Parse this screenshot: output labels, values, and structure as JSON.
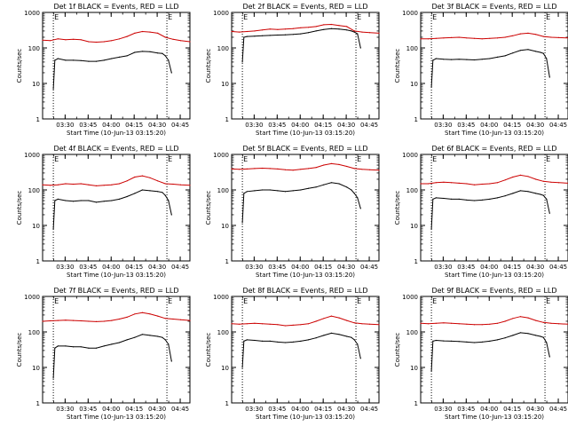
{
  "figure": {
    "xlabel": "Start Time (10-Jun-13 03:15:20)",
    "ylabel": "Counts/sec",
    "xtick_labels": [
      "03:30",
      "03:45",
      "04:00",
      "04:15",
      "04:30",
      "04:45"
    ],
    "ytick_labels": [
      "1",
      "10",
      "100",
      "1000"
    ],
    "marker_label": "E",
    "colors": {
      "events": "#000000",
      "lld": "#cc0000",
      "axis": "#000000",
      "background": "#ffffff"
    }
  },
  "chart_data": [
    {
      "type": "line",
      "title": "Det 1f BLACK = Events, RED = LLD",
      "xlabel": "Start Time (10-Jun-13 03:15:20)",
      "ylabel": "Counts/sec",
      "yscale": "log",
      "ylim": [
        1,
        1000
      ],
      "x_unit": "minutes after 03:15:20",
      "xlim": [
        0,
        96
      ],
      "xticks": [
        "03:30",
        "03:45",
        "04:00",
        "04:15",
        "04:30",
        "04:45"
      ],
      "markers_E": [
        7,
        81
      ],
      "series": [
        {
          "name": "Events",
          "color": "#000000",
          "x": [
            7,
            8,
            10,
            15,
            20,
            25,
            30,
            35,
            40,
            45,
            50,
            55,
            60,
            65,
            70,
            75,
            78,
            80,
            82,
            84
          ],
          "y": [
            7,
            45,
            50,
            45,
            45,
            44,
            42,
            42,
            45,
            50,
            55,
            60,
            75,
            80,
            78,
            72,
            70,
            60,
            45,
            20
          ]
        },
        {
          "name": "LLD",
          "color": "#cc0000",
          "x": [
            0,
            5,
            10,
            15,
            20,
            25,
            30,
            35,
            40,
            45,
            50,
            55,
            60,
            65,
            70,
            75,
            80,
            85,
            90,
            96
          ],
          "y": [
            165,
            160,
            180,
            170,
            175,
            170,
            150,
            145,
            150,
            160,
            180,
            210,
            260,
            290,
            280,
            260,
            200,
            175,
            160,
            150
          ]
        }
      ]
    },
    {
      "type": "line",
      "title": "Det 2f BLACK = Events, RED = LLD",
      "xlabel": "Start Time (10-Jun-13 03:15:20)",
      "ylabel": "Counts/sec",
      "yscale": "log",
      "ylim": [
        1,
        1000
      ],
      "x_unit": "minutes after 03:15:20",
      "xlim": [
        0,
        96
      ],
      "xticks": [
        "03:30",
        "03:45",
        "04:00",
        "04:15",
        "04:30",
        "04:45"
      ],
      "markers_E": [
        7,
        81
      ],
      "series": [
        {
          "name": "Events",
          "color": "#000000",
          "x": [
            7,
            8,
            10,
            15,
            20,
            25,
            30,
            35,
            40,
            45,
            50,
            55,
            60,
            65,
            70,
            75,
            78,
            80,
            82,
            84
          ],
          "y": [
            40,
            200,
            210,
            215,
            220,
            225,
            230,
            235,
            240,
            250,
            270,
            300,
            330,
            350,
            340,
            320,
            300,
            280,
            250,
            100
          ]
        },
        {
          "name": "LLD",
          "color": "#cc0000",
          "x": [
            0,
            5,
            10,
            15,
            20,
            25,
            30,
            35,
            40,
            45,
            50,
            55,
            60,
            65,
            70,
            75,
            80,
            85,
            90,
            96
          ],
          "y": [
            290,
            280,
            290,
            300,
            320,
            340,
            330,
            340,
            350,
            370,
            380,
            400,
            450,
            460,
            430,
            400,
            300,
            280,
            270,
            260
          ]
        }
      ]
    },
    {
      "type": "line",
      "title": "Det 3f BLACK = Events, RED = LLD",
      "xlabel": "Start Time (10-Jun-13 03:15:20)",
      "ylabel": "Counts/sec",
      "yscale": "log",
      "ylim": [
        1,
        1000
      ],
      "x_unit": "minutes after 03:15:20",
      "xlim": [
        0,
        96
      ],
      "xticks": [
        "03:30",
        "03:45",
        "04:00",
        "04:15",
        "04:30",
        "04:45"
      ],
      "markers_E": [
        7,
        81
      ],
      "series": [
        {
          "name": "Events",
          "color": "#000000",
          "x": [
            7,
            8,
            10,
            15,
            20,
            25,
            30,
            35,
            40,
            45,
            50,
            55,
            60,
            65,
            70,
            75,
            78,
            80,
            82,
            84
          ],
          "y": [
            8,
            45,
            50,
            48,
            47,
            48,
            47,
            46,
            48,
            50,
            55,
            60,
            72,
            85,
            90,
            80,
            75,
            70,
            50,
            15
          ]
        },
        {
          "name": "LLD",
          "color": "#cc0000",
          "x": [
            0,
            5,
            10,
            15,
            20,
            25,
            30,
            35,
            40,
            45,
            50,
            55,
            60,
            65,
            70,
            75,
            80,
            85,
            90,
            96
          ],
          "y": [
            180,
            180,
            185,
            190,
            195,
            200,
            190,
            185,
            180,
            185,
            190,
            200,
            220,
            250,
            260,
            240,
            210,
            200,
            195,
            190
          ]
        }
      ]
    },
    {
      "type": "line",
      "title": "Det 4f BLACK = Events, RED = LLD",
      "xlabel": "Start Time (10-Jun-13 03:15:20)",
      "ylabel": "Counts/sec",
      "yscale": "log",
      "ylim": [
        1,
        1000
      ],
      "x_unit": "minutes after 03:15:20",
      "xlim": [
        0,
        96
      ],
      "xticks": [
        "03:30",
        "03:45",
        "04:00",
        "04:15",
        "04:30",
        "04:45"
      ],
      "markers_E": [
        7,
        81
      ],
      "series": [
        {
          "name": "Events",
          "color": "#000000",
          "x": [
            7,
            8,
            10,
            15,
            20,
            25,
            30,
            35,
            40,
            45,
            50,
            55,
            60,
            65,
            70,
            75,
            78,
            80,
            82,
            84
          ],
          "y": [
            8,
            50,
            55,
            50,
            48,
            50,
            50,
            45,
            48,
            50,
            55,
            65,
            80,
            100,
            95,
            90,
            85,
            70,
            50,
            20
          ]
        },
        {
          "name": "LLD",
          "color": "#cc0000",
          "x": [
            0,
            5,
            10,
            15,
            20,
            25,
            30,
            35,
            40,
            45,
            50,
            55,
            60,
            65,
            70,
            75,
            80,
            85,
            90,
            96
          ],
          "y": [
            140,
            135,
            140,
            150,
            145,
            150,
            140,
            130,
            135,
            140,
            150,
            180,
            230,
            250,
            220,
            180,
            150,
            145,
            140,
            135
          ]
        }
      ]
    },
    {
      "type": "line",
      "title": "Det 5f BLACK = Events, RED = LLD",
      "xlabel": "Start Time (10-Jun-13 03:15:20)",
      "ylabel": "Counts/sec",
      "yscale": "log",
      "ylim": [
        1,
        1000
      ],
      "x_unit": "minutes after 03:15:20",
      "xlim": [
        0,
        96
      ],
      "xticks": [
        "03:30",
        "03:45",
        "04:00",
        "04:15",
        "04:30",
        "04:45"
      ],
      "markers_E": [
        7,
        81
      ],
      "series": [
        {
          "name": "Events",
          "color": "#000000",
          "x": [
            7,
            8,
            10,
            15,
            20,
            25,
            30,
            35,
            40,
            45,
            50,
            55,
            60,
            65,
            70,
            75,
            78,
            80,
            82,
            84
          ],
          "y": [
            12,
            80,
            90,
            95,
            100,
            100,
            95,
            90,
            95,
            100,
            110,
            120,
            140,
            160,
            150,
            120,
            100,
            80,
            60,
            30
          ]
        },
        {
          "name": "LLD",
          "color": "#cc0000",
          "x": [
            0,
            5,
            10,
            15,
            20,
            25,
            30,
            35,
            40,
            45,
            50,
            55,
            60,
            65,
            70,
            75,
            80,
            85,
            90,
            96
          ],
          "y": [
            390,
            380,
            390,
            400,
            410,
            400,
            390,
            370,
            360,
            380,
            400,
            430,
            500,
            550,
            520,
            460,
            400,
            380,
            370,
            360
          ]
        }
      ]
    },
    {
      "type": "line",
      "title": "Det 6f BLACK = Events, RED = LLD",
      "xlabel": "Start Time (10-Jun-13 03:15:20)",
      "ylabel": "Counts/sec",
      "yscale": "log",
      "ylim": [
        1,
        1000
      ],
      "x_unit": "minutes after 03:15:20",
      "xlim": [
        0,
        96
      ],
      "xticks": [
        "03:30",
        "03:45",
        "04:00",
        "04:15",
        "04:30",
        "04:45"
      ],
      "markers_E": [
        7,
        81
      ],
      "series": [
        {
          "name": "Events",
          "color": "#000000",
          "x": [
            7,
            8,
            10,
            15,
            20,
            25,
            30,
            35,
            40,
            45,
            50,
            55,
            60,
            65,
            70,
            75,
            78,
            80,
            82,
            84
          ],
          "y": [
            8,
            55,
            60,
            58,
            55,
            55,
            52,
            50,
            52,
            55,
            60,
            68,
            80,
            95,
            90,
            80,
            75,
            70,
            55,
            22
          ]
        },
        {
          "name": "LLD",
          "color": "#cc0000",
          "x": [
            0,
            5,
            10,
            15,
            20,
            25,
            30,
            35,
            40,
            45,
            50,
            55,
            60,
            65,
            70,
            75,
            80,
            85,
            90,
            96
          ],
          "y": [
            150,
            150,
            160,
            165,
            160,
            155,
            150,
            140,
            145,
            150,
            160,
            190,
            230,
            260,
            240,
            200,
            175,
            165,
            160,
            155
          ]
        }
      ]
    },
    {
      "type": "line",
      "title": "Det 7f BLACK = Events, RED = LLD",
      "xlabel": "Start Time (10-Jun-13 03:15:20)",
      "ylabel": "Counts/sec",
      "yscale": "log",
      "ylim": [
        1,
        1000
      ],
      "x_unit": "minutes after 03:15:20",
      "xlim": [
        0,
        96
      ],
      "xticks": [
        "03:30",
        "03:45",
        "04:00",
        "04:15",
        "04:30",
        "04:45"
      ],
      "markers_E": [
        7,
        81
      ],
      "series": [
        {
          "name": "Events",
          "color": "#000000",
          "x": [
            7,
            8,
            10,
            15,
            20,
            25,
            30,
            35,
            40,
            45,
            50,
            55,
            60,
            65,
            70,
            75,
            78,
            80,
            82,
            84
          ],
          "y": [
            5,
            35,
            40,
            40,
            38,
            38,
            35,
            35,
            40,
            45,
            50,
            60,
            70,
            85,
            80,
            75,
            70,
            60,
            45,
            15
          ]
        },
        {
          "name": "LLD",
          "color": "#cc0000",
          "x": [
            0,
            5,
            10,
            15,
            20,
            25,
            30,
            35,
            40,
            45,
            50,
            55,
            60,
            65,
            70,
            75,
            80,
            85,
            90,
            96
          ],
          "y": [
            200,
            205,
            210,
            215,
            210,
            205,
            200,
            195,
            200,
            210,
            230,
            260,
            320,
            350,
            320,
            280,
            240,
            230,
            220,
            210
          ]
        }
      ]
    },
    {
      "type": "line",
      "title": "Det 8f BLACK = Events, RED = LLD",
      "xlabel": "Start Time (10-Jun-13 03:15:20)",
      "ylabel": "Counts/sec",
      "yscale": "log",
      "ylim": [
        1,
        1000
      ],
      "x_unit": "minutes after 03:15:20",
      "xlim": [
        0,
        96
      ],
      "xticks": [
        "03:30",
        "03:45",
        "04:00",
        "04:15",
        "04:30",
        "04:45"
      ],
      "markers_E": [
        7,
        81
      ],
      "series": [
        {
          "name": "Events",
          "color": "#000000",
          "x": [
            7,
            8,
            10,
            15,
            20,
            25,
            30,
            35,
            40,
            45,
            50,
            55,
            60,
            65,
            70,
            75,
            78,
            80,
            82,
            84
          ],
          "y": [
            10,
            55,
            60,
            58,
            55,
            55,
            52,
            50,
            52,
            55,
            60,
            68,
            80,
            92,
            85,
            75,
            70,
            60,
            45,
            18
          ]
        },
        {
          "name": "LLD",
          "color": "#cc0000",
          "x": [
            0,
            5,
            10,
            15,
            20,
            25,
            30,
            35,
            40,
            45,
            50,
            55,
            60,
            65,
            70,
            75,
            80,
            85,
            90,
            96
          ],
          "y": [
            170,
            165,
            170,
            175,
            170,
            165,
            160,
            150,
            155,
            160,
            170,
            200,
            240,
            280,
            250,
            210,
            180,
            170,
            165,
            160
          ]
        }
      ]
    },
    {
      "type": "line",
      "title": "Det 9f BLACK = Events, RED = LLD",
      "xlabel": "Start Time (10-Jun-13 03:15:20)",
      "ylabel": "Counts/sec",
      "yscale": "log",
      "ylim": [
        1,
        1000
      ],
      "x_unit": "minutes after 03:15:20",
      "xlim": [
        0,
        96
      ],
      "xticks": [
        "03:30",
        "03:45",
        "04:00",
        "04:15",
        "04:30",
        "04:45"
      ],
      "markers_E": [
        7,
        81
      ],
      "series": [
        {
          "name": "Events",
          "color": "#000000",
          "x": [
            7,
            8,
            10,
            15,
            20,
            25,
            30,
            35,
            40,
            45,
            50,
            55,
            60,
            65,
            70,
            75,
            78,
            80,
            82,
            84
          ],
          "y": [
            8,
            55,
            58,
            56,
            55,
            54,
            52,
            50,
            52,
            55,
            60,
            68,
            80,
            95,
            90,
            80,
            75,
            70,
            50,
            20
          ]
        },
        {
          "name": "LLD",
          "color": "#cc0000",
          "x": [
            0,
            5,
            10,
            15,
            20,
            25,
            30,
            35,
            40,
            45,
            50,
            55,
            60,
            65,
            70,
            75,
            80,
            85,
            90,
            96
          ],
          "y": [
            175,
            170,
            175,
            180,
            175,
            170,
            165,
            160,
            160,
            165,
            175,
            200,
            240,
            270,
            250,
            210,
            185,
            175,
            170,
            165
          ]
        }
      ]
    }
  ]
}
